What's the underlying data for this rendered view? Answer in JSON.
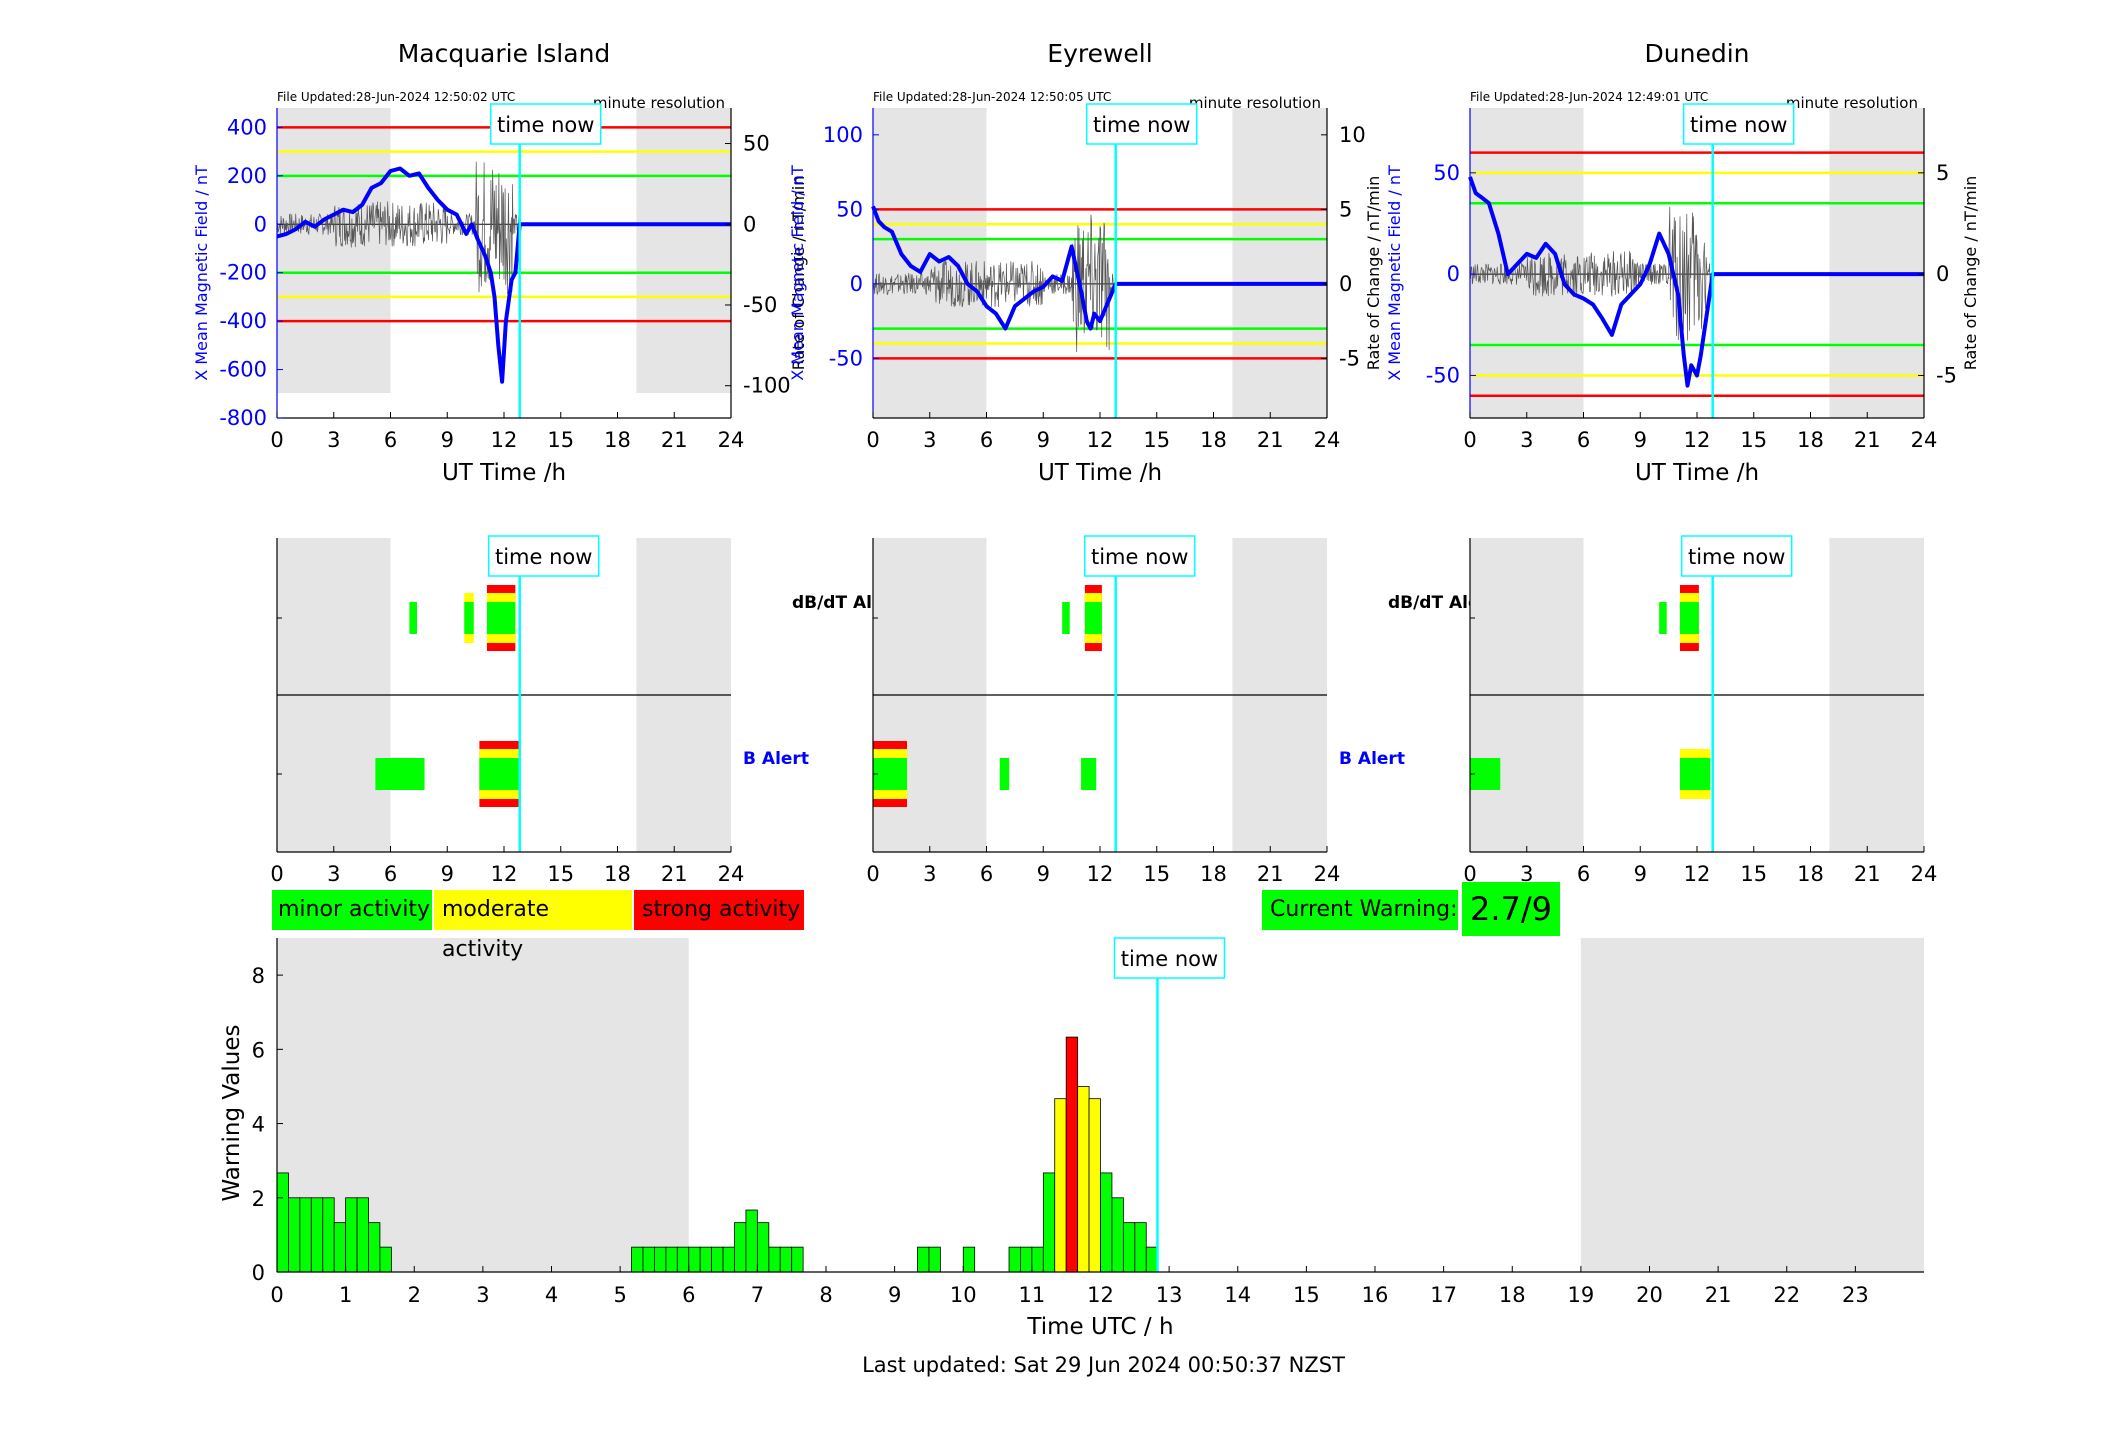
{
  "stations": [
    {
      "name": "Macquarie Island",
      "file_updated": "File Updated:28-Jun-2024 12:50:02 UTC",
      "resolution": "minute resolution",
      "ylabel_left": "X Mean Magnetic Field / nT",
      "ylabel_right": "Rate of Change / nT/min"
    },
    {
      "name": "Eyrewell",
      "file_updated": "File Updated:28-Jun-2024 12:50:05 UTC",
      "resolution": "minute resolution",
      "ylabel_left": "X Mean Magnetic Field / nT",
      "ylabel_right": "Rate of Change / nT/min"
    },
    {
      "name": "Dunedin",
      "file_updated": "File Updated:28-Jun-2024 12:49:01 UTC",
      "resolution": "minute resolution",
      "ylabel_left": "X Mean Magnetic Field / nT",
      "ylabel_right": "Rate of Change / nT/min"
    }
  ],
  "labels": {
    "time_now": "time now",
    "ut_time": "UT Time /h",
    "dbdt_alert": "dB/dT Alert",
    "b_alert": "B Alert",
    "warning_ylabel": "Warning Values",
    "warning_xlabel": "Time UTC / h",
    "last_updated": "Last updated: Sat 29 Jun 2024 00:50:37 NZST"
  },
  "legend": {
    "minor": "minor activity",
    "moderate": "moderate activity",
    "strong": "strong activity"
  },
  "current_warning": {
    "label": "Current Warning:",
    "value": "2.7/9"
  },
  "colors": {
    "minor": "#00ff00",
    "moderate": "#ffff00",
    "strong": "#ff0000",
    "now_line": "#00ffff",
    "field": "#0000ff",
    "night": "#e5e5e5"
  },
  "chart_data": [
    {
      "type": "line",
      "title": "Macquarie Island",
      "xlabel": "UT Time /h",
      "ylabel": "X Mean Magnetic Field / nT",
      "y2label": "Rate of Change / nT/min",
      "xlim": [
        0,
        24
      ],
      "ylim": [
        -800,
        480
      ],
      "y2lim": [
        -120,
        72
      ],
      "xticks": [
        0,
        3,
        6,
        9,
        12,
        15,
        18,
        21,
        24
      ],
      "yticks": [
        -800,
        -600,
        -400,
        -200,
        0,
        200,
        400
      ],
      "y2ticks": [
        -100,
        -50,
        0,
        50
      ],
      "thresholds": {
        "red": [
          400,
          -400
        ],
        "yellow": [
          300,
          -300
        ],
        "green": [
          200,
          -200
        ]
      },
      "night_shading": [
        [
          0,
          6
        ],
        [
          19,
          24
        ]
      ],
      "time_now": 12.83,
      "field": {
        "x": [
          0,
          0.5,
          1,
          1.5,
          2,
          2.5,
          3,
          3.5,
          4,
          4.5,
          5,
          5.5,
          6,
          6.5,
          7,
          7.5,
          8,
          8.5,
          9,
          9.5,
          10,
          10.3,
          10.6,
          11,
          11.3,
          11.5,
          11.7,
          11.9,
          12.1,
          12.4,
          12.6,
          12.83,
          24
        ],
        "y": [
          -50,
          -40,
          -20,
          10,
          -10,
          20,
          40,
          60,
          50,
          80,
          150,
          170,
          220,
          230,
          200,
          210,
          150,
          100,
          60,
          40,
          -40,
          0,
          -60,
          -130,
          -200,
          -300,
          -500,
          -650,
          -400,
          -230,
          -200,
          0,
          0
        ]
      }
    },
    {
      "type": "line",
      "title": "Eyrewell",
      "xlabel": "UT Time /h",
      "ylabel": "X Mean Magnetic Field / nT",
      "y2label": "Rate of Change / nT/min",
      "xlim": [
        0,
        24
      ],
      "ylim": [
        -90,
        118
      ],
      "y2lim": [
        -9,
        11.8
      ],
      "xticks": [
        0,
        3,
        6,
        9,
        12,
        15,
        18,
        21,
        24
      ],
      "yticks": [
        -50,
        0,
        50,
        100
      ],
      "y2ticks": [
        -5,
        0,
        5,
        10
      ],
      "thresholds": {
        "red": [
          50,
          -50
        ],
        "yellow": [
          40,
          -40
        ],
        "green": [
          30,
          -30
        ]
      },
      "night_shading": [
        [
          0,
          6
        ],
        [
          19,
          24
        ]
      ],
      "time_now": 12.83,
      "field": {
        "x": [
          0,
          0.3,
          0.6,
          1,
          1.5,
          2,
          2.5,
          3,
          3.5,
          4,
          4.5,
          5,
          5.5,
          6,
          6.5,
          7,
          7.5,
          8,
          8.5,
          9,
          9.5,
          10,
          10.5,
          11,
          11.3,
          11.5,
          11.7,
          12,
          12.83,
          24
        ],
        "y": [
          52,
          42,
          38,
          35,
          20,
          12,
          8,
          20,
          15,
          18,
          12,
          0,
          -5,
          -15,
          -20,
          -30,
          -15,
          -10,
          -5,
          -2,
          5,
          2,
          25,
          -5,
          -25,
          -30,
          -20,
          -25,
          0,
          0
        ]
      }
    },
    {
      "type": "line",
      "title": "Dunedin",
      "xlabel": "UT Time /h",
      "ylabel": "X Mean Magnetic Field / nT",
      "y2label": "Rate of Change / nT/min",
      "xlim": [
        0,
        24
      ],
      "ylim": [
        -71,
        82
      ],
      "y2lim": [
        -7.1,
        8.2
      ],
      "xticks": [
        0,
        3,
        6,
        9,
        12,
        15,
        18,
        21,
        24
      ],
      "yticks": [
        -50,
        0,
        50
      ],
      "y2ticks": [
        -5,
        0,
        5
      ],
      "thresholds": {
        "red": [
          60,
          -60
        ],
        "yellow": [
          50,
          -50
        ],
        "green": [
          35,
          -35
        ]
      },
      "night_shading": [
        [
          0,
          6
        ],
        [
          19,
          24
        ]
      ],
      "time_now": 12.83,
      "field": {
        "x": [
          0,
          0.3,
          0.6,
          1,
          1.5,
          2,
          2.5,
          3,
          3.5,
          4,
          4.5,
          5,
          5.5,
          6,
          6.5,
          7,
          7.5,
          8,
          8.5,
          9,
          9.5,
          10,
          10.5,
          11,
          11.3,
          11.5,
          11.7,
          12,
          12.2,
          12.83,
          24
        ],
        "y": [
          48,
          40,
          38,
          35,
          20,
          0,
          5,
          10,
          8,
          15,
          10,
          -5,
          -10,
          -12,
          -15,
          -22,
          -30,
          -15,
          -10,
          -5,
          5,
          20,
          10,
          -10,
          -40,
          -55,
          -45,
          -50,
          -40,
          0,
          0
        ]
      }
    },
    {
      "type": "bar",
      "ylabel": "Warning Values",
      "xlabel": "Time UTC / h",
      "xlim": [
        0,
        24
      ],
      "ylim": [
        0,
        9
      ],
      "xticks": [
        0,
        1,
        2,
        3,
        4,
        5,
        6,
        7,
        8,
        9,
        10,
        11,
        12,
        13,
        14,
        15,
        16,
        17,
        18,
        19,
        20,
        21,
        22,
        23
      ],
      "yticks": [
        0,
        2,
        4,
        6,
        8
      ],
      "night_shading": [
        [
          0,
          6
        ],
        [
          19,
          24
        ]
      ],
      "time_now": 12.83,
      "bin_width": 0.1667,
      "bars": [
        {
          "x": 0,
          "value": 2.67,
          "level": "minor"
        },
        {
          "x": 0.167,
          "value": 2,
          "level": "minor"
        },
        {
          "x": 0.333,
          "value": 2,
          "level": "minor"
        },
        {
          "x": 0.5,
          "value": 2,
          "level": "minor"
        },
        {
          "x": 0.667,
          "value": 2,
          "level": "minor"
        },
        {
          "x": 0.833,
          "value": 1.33,
          "level": "minor"
        },
        {
          "x": 1,
          "value": 2,
          "level": "minor"
        },
        {
          "x": 1.167,
          "value": 2,
          "level": "minor"
        },
        {
          "x": 1.333,
          "value": 1.33,
          "level": "minor"
        },
        {
          "x": 1.5,
          "value": 0.67,
          "level": "minor"
        },
        {
          "x": 5.167,
          "value": 0.67,
          "level": "minor"
        },
        {
          "x": 5.333,
          "value": 0.67,
          "level": "minor"
        },
        {
          "x": 5.5,
          "value": 0.67,
          "level": "minor"
        },
        {
          "x": 5.667,
          "value": 0.67,
          "level": "minor"
        },
        {
          "x": 5.833,
          "value": 0.67,
          "level": "minor"
        },
        {
          "x": 6,
          "value": 0.67,
          "level": "minor"
        },
        {
          "x": 6.167,
          "value": 0.67,
          "level": "minor"
        },
        {
          "x": 6.333,
          "value": 0.67,
          "level": "minor"
        },
        {
          "x": 6.5,
          "value": 0.67,
          "level": "minor"
        },
        {
          "x": 6.667,
          "value": 1.33,
          "level": "minor"
        },
        {
          "x": 6.833,
          "value": 1.67,
          "level": "minor"
        },
        {
          "x": 7,
          "value": 1.33,
          "level": "minor"
        },
        {
          "x": 7.167,
          "value": 0.67,
          "level": "minor"
        },
        {
          "x": 7.333,
          "value": 0.67,
          "level": "minor"
        },
        {
          "x": 7.5,
          "value": 0.67,
          "level": "minor"
        },
        {
          "x": 9.333,
          "value": 0.67,
          "level": "minor"
        },
        {
          "x": 9.5,
          "value": 0.67,
          "level": "minor"
        },
        {
          "x": 10,
          "value": 0.67,
          "level": "minor"
        },
        {
          "x": 10.667,
          "value": 0.67,
          "level": "minor"
        },
        {
          "x": 10.833,
          "value": 0.67,
          "level": "minor"
        },
        {
          "x": 11,
          "value": 0.67,
          "level": "minor"
        },
        {
          "x": 11.167,
          "value": 2.67,
          "level": "minor"
        },
        {
          "x": 11.333,
          "value": 4.67,
          "level": "moderate"
        },
        {
          "x": 11.5,
          "value": 6.33,
          "level": "strong"
        },
        {
          "x": 11.667,
          "value": 5,
          "level": "moderate"
        },
        {
          "x": 11.833,
          "value": 4.67,
          "level": "moderate"
        },
        {
          "x": 12,
          "value": 2.67,
          "level": "minor"
        },
        {
          "x": 12.167,
          "value": 2,
          "level": "minor"
        },
        {
          "x": 12.333,
          "value": 1.33,
          "level": "minor"
        },
        {
          "x": 12.5,
          "value": 1.33,
          "level": "minor"
        },
        {
          "x": 12.667,
          "value": 0.67,
          "level": "minor"
        }
      ]
    }
  ],
  "alerts": [
    {
      "dbdt": [
        {
          "x0": 7.0,
          "x1": 7.4,
          "levels": [
            "minor"
          ]
        },
        {
          "x0": 9.9,
          "x1": 10.4,
          "levels": [
            "moderate",
            "minor"
          ]
        },
        {
          "x0": 11.1,
          "x1": 12.6,
          "levels": [
            "strong",
            "moderate",
            "minor"
          ]
        }
      ],
      "b": [
        {
          "x0": 5.2,
          "x1": 7.8,
          "levels": [
            "minor"
          ]
        },
        {
          "x0": 10.7,
          "x1": 12.8,
          "levels": [
            "strong",
            "moderate",
            "minor"
          ]
        }
      ]
    },
    {
      "dbdt": [
        {
          "x0": 10.0,
          "x1": 10.4,
          "levels": [
            "minor"
          ]
        },
        {
          "x0": 11.2,
          "x1": 12.1,
          "levels": [
            "strong",
            "moderate",
            "minor"
          ]
        }
      ],
      "b": [
        {
          "x0": 0,
          "x1": 1.8,
          "levels": [
            "strong",
            "moderate",
            "minor"
          ]
        },
        {
          "x0": 6.7,
          "x1": 7.2,
          "levels": [
            "minor"
          ]
        },
        {
          "x0": 11.0,
          "x1": 11.8,
          "levels": [
            "minor"
          ]
        }
      ]
    },
    {
      "dbdt": [
        {
          "x0": 10.0,
          "x1": 10.4,
          "levels": [
            "minor"
          ]
        },
        {
          "x0": 11.1,
          "x1": 12.1,
          "levels": [
            "strong",
            "moderate",
            "minor"
          ]
        }
      ],
      "b": [
        {
          "x0": 0,
          "x1": 1.6,
          "levels": [
            "minor"
          ]
        },
        {
          "x0": 11.1,
          "x1": 12.7,
          "levels": [
            "moderate",
            "minor"
          ]
        }
      ]
    }
  ]
}
